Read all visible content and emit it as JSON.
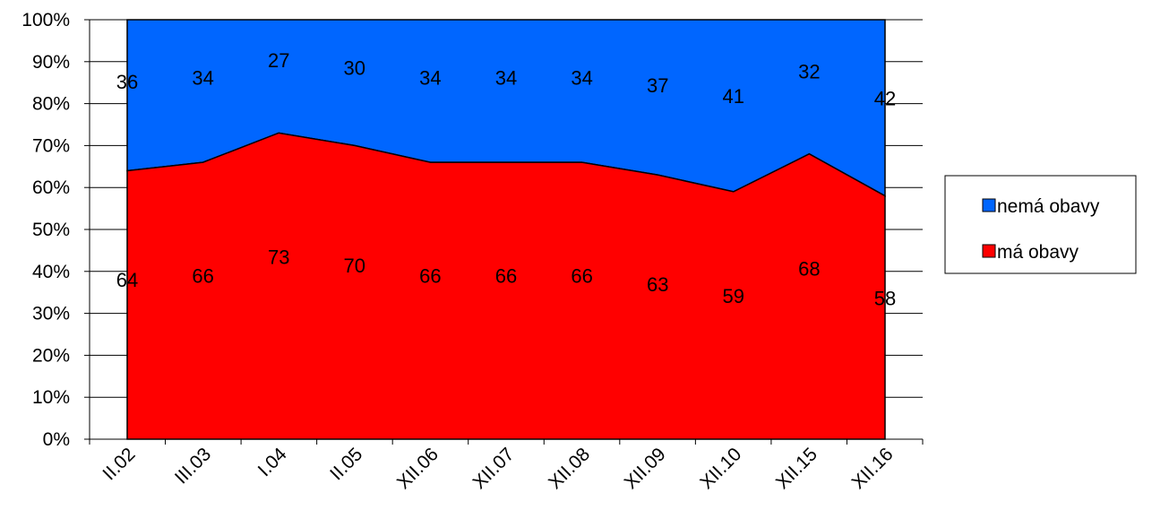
{
  "chart_data": {
    "type": "area",
    "stacked": true,
    "percent": true,
    "categories": [
      "II.02",
      "III.03",
      "I.04",
      "II.05",
      "XII.06",
      "XII.07",
      "XII.08",
      "XII.09",
      "XII.10",
      "XII.15",
      "XII.16"
    ],
    "series": [
      {
        "name": "má obavy",
        "color": "#ff0000",
        "values": [
          64,
          66,
          73,
          70,
          66,
          66,
          66,
          63,
          59,
          68,
          58
        ]
      },
      {
        "name": "nemá obavy",
        "color": "#0066ff",
        "values": [
          36,
          34,
          27,
          30,
          34,
          34,
          34,
          37,
          41,
          32,
          42
        ]
      }
    ],
    "y_ticks": [
      "0%",
      "10%",
      "20%",
      "30%",
      "40%",
      "50%",
      "60%",
      "70%",
      "80%",
      "90%",
      "100%"
    ],
    "ylim": [
      0,
      100
    ],
    "grid": true,
    "legend_position": "right",
    "legend": [
      {
        "label": "nemá obavy",
        "color": "#0066ff"
      },
      {
        "label": "má obavy",
        "color": "#ff0000"
      }
    ]
  }
}
